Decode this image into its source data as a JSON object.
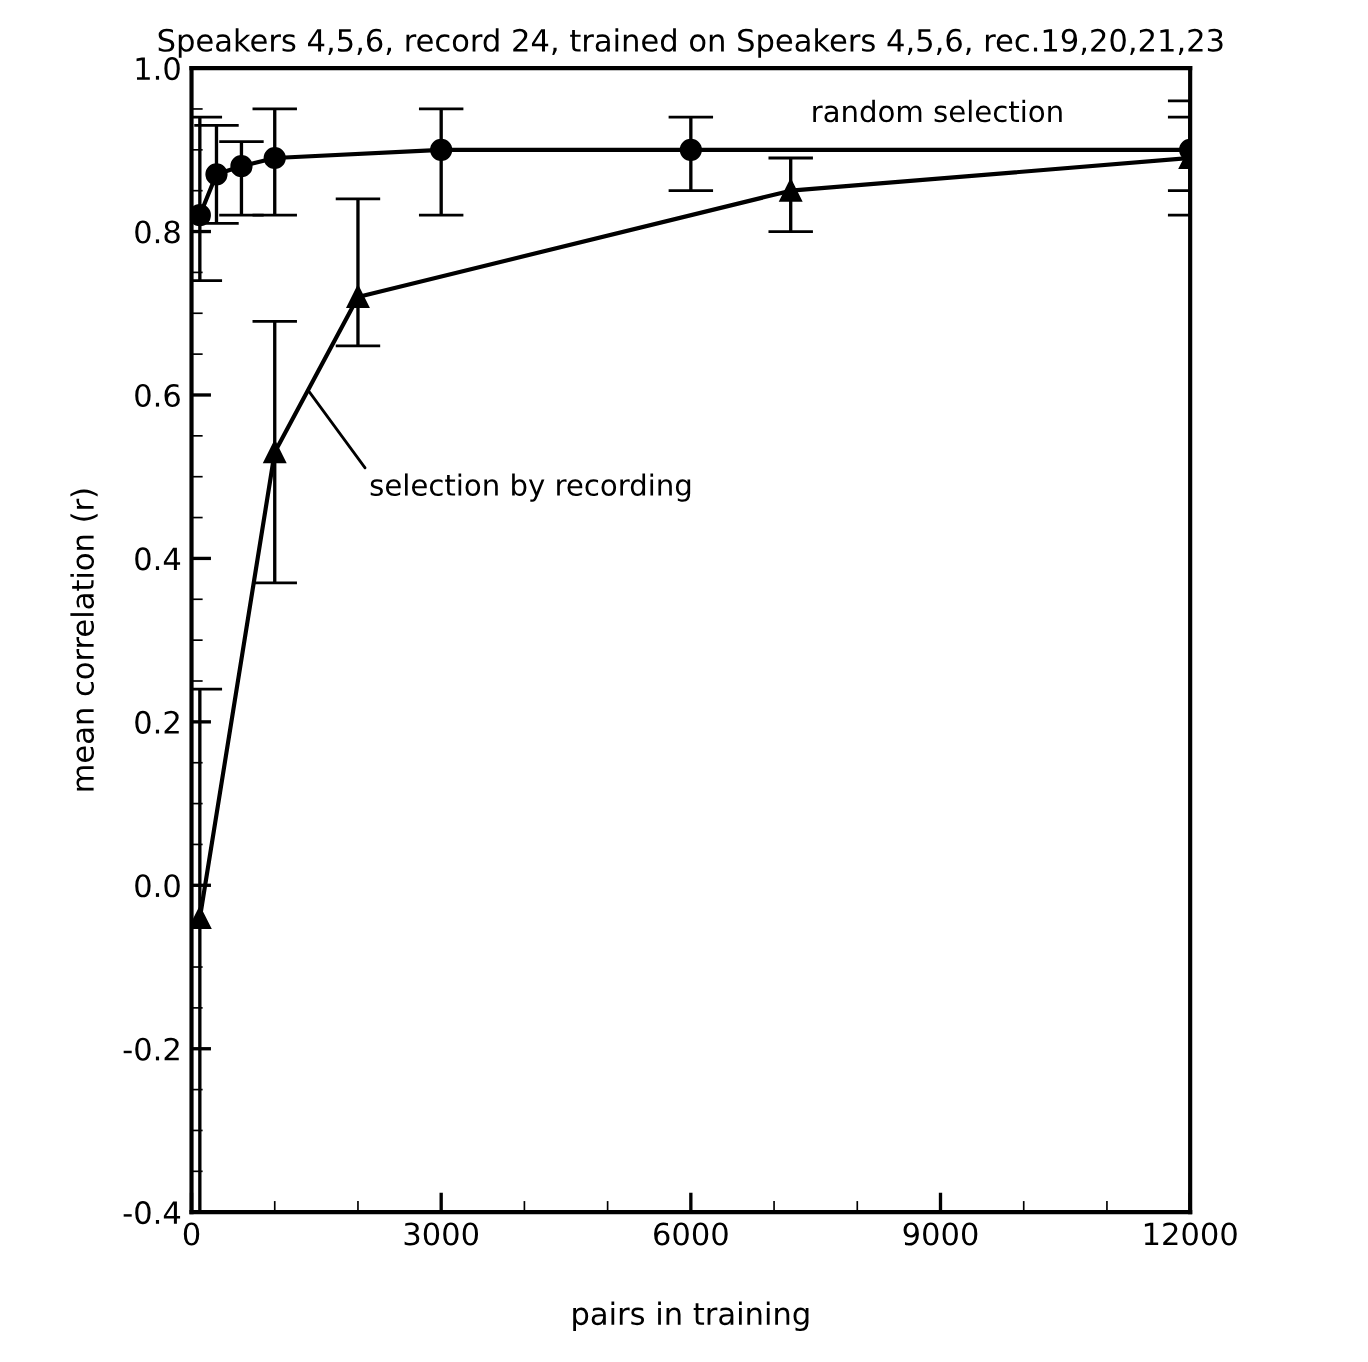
{
  "chart_data": {
    "type": "line",
    "title": "Speakers 4,5,6, record 24, trained on Speakers 4,5,6, rec.19,20,21,23",
    "xlabel": "pairs in training",
    "ylabel": "mean correlation (r)",
    "xlim": [
      0,
      12000
    ],
    "xticks": [
      0,
      3000,
      6000,
      9000,
      12000
    ],
    "ylim": [
      -0.4,
      1.0
    ],
    "yticks": [
      {
        "value": -0.4,
        "label": "-0.4"
      },
      {
        "value": -0.2,
        "label": "-0.2"
      },
      {
        "value": 0,
        "label": "0.0"
      },
      {
        "value": 0.2,
        "label": "0.2"
      },
      {
        "value": 0.4,
        "label": "0.4"
      },
      {
        "value": 0.6,
        "label": "0.6"
      },
      {
        "value": 0.8,
        "label": "0.8"
      },
      {
        "value": 1.0,
        "label": "1.0"
      }
    ],
    "grid": false,
    "legend": false,
    "line_style": "solid",
    "series": [
      {
        "name": "random selection",
        "color": "#000000",
        "marker": "circle",
        "x": [
          100,
          300,
          600,
          1000,
          3000,
          6000,
          12000
        ],
        "values": [
          0.82,
          0.87,
          0.88,
          0.89,
          0.9,
          0.9,
          0.9
        ],
        "errors": [
          [
            0.74,
            0.94
          ],
          [
            0.81,
            0.93
          ],
          [
            0.82,
            0.91
          ],
          [
            0.82,
            0.95
          ],
          [
            0.82,
            0.95
          ],
          [
            0.85,
            0.94
          ],
          [
            0.85,
            0.96
          ]
        ]
      },
      {
        "name": "selection by recording",
        "color": "#000000",
        "marker": "triangle",
        "x": [
          100,
          1000,
          2000,
          7200,
          12000
        ],
        "values": [
          -0.04,
          0.53,
          0.72,
          0.85,
          0.89
        ],
        "errors": [
          [
            -0.4,
            0.24
          ],
          [
            0.37,
            0.69
          ],
          [
            0.66,
            0.84
          ],
          [
            0.8,
            0.89
          ],
          [
            0.82,
            0.94
          ]
        ]
      }
    ]
  }
}
